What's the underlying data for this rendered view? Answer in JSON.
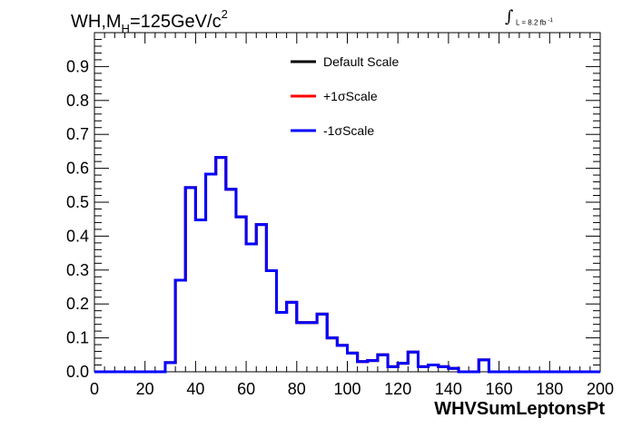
{
  "header": {
    "title_prefix": "WH,M",
    "title_sub": "H",
    "title_mid": "=125GeV/c",
    "title_sup": "2",
    "lumi_integral": "∫",
    "lumi_text": "L = 8.2 fb",
    "lumi_sup": "-1"
  },
  "chart_data": {
    "type": "line",
    "drawstyle": "steps",
    "title": "WH,M_H=125GeV/c^2",
    "xlabel": "WHVSumLeptonsPt",
    "ylabel": "",
    "xlim": [
      0,
      200
    ],
    "ylim": [
      0,
      1.0
    ],
    "x_ticks": [
      0,
      20,
      40,
      60,
      80,
      100,
      120,
      140,
      160,
      180,
      200
    ],
    "y_ticks": [
      0.0,
      0.1,
      0.2,
      0.3,
      0.4,
      0.5,
      0.6,
      0.7,
      0.8,
      0.9
    ],
    "x_tick_labels": [
      "0",
      "20",
      "40",
      "60",
      "80",
      "100",
      "120",
      "140",
      "160",
      "180",
      "200"
    ],
    "y_tick_labels": [
      "0.0",
      "0.1",
      "0.2",
      "0.3",
      "0.4",
      "0.5",
      "0.6",
      "0.7",
      "0.8",
      "0.9"
    ],
    "bin_edges": [
      0,
      4,
      8,
      12,
      16,
      20,
      24,
      28,
      32,
      36,
      40,
      44,
      48,
      52,
      56,
      60,
      64,
      68,
      72,
      76,
      80,
      84,
      88,
      92,
      96,
      100,
      104,
      108,
      112,
      116,
      120,
      124,
      128,
      132,
      136,
      140,
      144,
      148,
      152,
      156,
      160,
      164,
      168,
      172,
      176,
      180,
      184,
      188,
      192,
      196,
      200
    ],
    "legend": {
      "placement": "top-center",
      "entries": [
        {
          "name": "Default Scale",
          "color": "#000000"
        },
        {
          "name": "+1σScale",
          "color": "#ff0000"
        },
        {
          "name": "-1σScale",
          "color": "#0000ff"
        }
      ]
    },
    "series": [
      {
        "name": "Default Scale",
        "color": "#000000",
        "values": [
          0,
          0,
          0,
          0,
          0,
          0,
          0,
          0.027,
          0.27,
          0.543,
          0.448,
          0.583,
          0.632,
          0.538,
          0.457,
          0.377,
          0.434,
          0.298,
          0.175,
          0.205,
          0.145,
          0.145,
          0.17,
          0.1,
          0.078,
          0.055,
          0.03,
          0.033,
          0.05,
          0.015,
          0.025,
          0.058,
          0.015,
          0.02,
          0.015,
          0.01,
          0,
          0,
          0.035,
          0,
          0,
          0,
          0,
          0,
          0,
          0,
          0,
          0,
          0,
          0
        ]
      },
      {
        "name": "+1σScale",
        "color": "#ff0000",
        "values": [
          0,
          0,
          0,
          0,
          0,
          0,
          0,
          0.027,
          0.27,
          0.543,
          0.448,
          0.583,
          0.632,
          0.538,
          0.457,
          0.377,
          0.434,
          0.298,
          0.175,
          0.205,
          0.145,
          0.145,
          0.17,
          0.1,
          0.078,
          0.055,
          0.03,
          0.033,
          0.05,
          0.015,
          0.025,
          0.058,
          0.015,
          0.02,
          0.015,
          0.01,
          0,
          0,
          0.035,
          0,
          0,
          0,
          0,
          0,
          0,
          0,
          0,
          0,
          0,
          0
        ]
      },
      {
        "name": "-1σScale",
        "color": "#0000ff",
        "values": [
          0,
          0,
          0,
          0,
          0,
          0,
          0,
          0.027,
          0.27,
          0.543,
          0.448,
          0.583,
          0.632,
          0.538,
          0.457,
          0.377,
          0.434,
          0.298,
          0.175,
          0.205,
          0.145,
          0.145,
          0.17,
          0.1,
          0.078,
          0.055,
          0.03,
          0.033,
          0.05,
          0.015,
          0.025,
          0.058,
          0.015,
          0.02,
          0.015,
          0.01,
          0,
          0,
          0.035,
          0,
          0,
          0,
          0,
          0,
          0,
          0,
          0,
          0,
          0,
          0
        ]
      }
    ]
  }
}
